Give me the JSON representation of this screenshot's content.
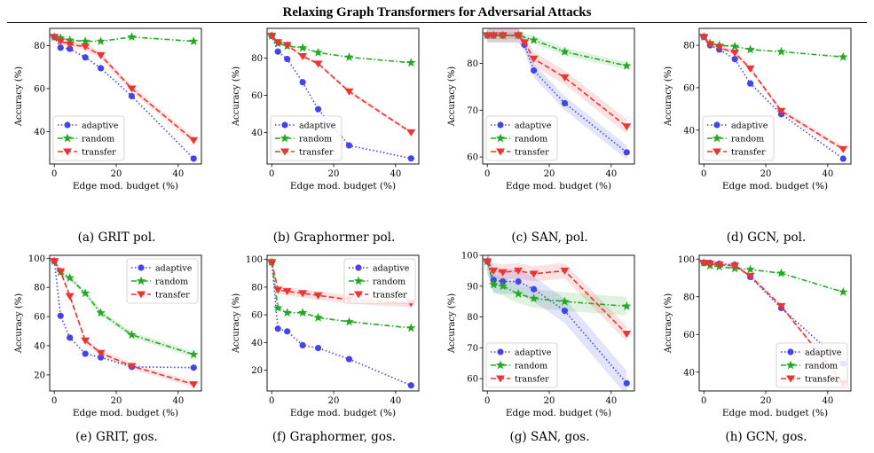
{
  "page_title": "Relaxing Graph Transformers for Adversarial Attacks",
  "series_styles": {
    "adaptive": {
      "color": "#4444ee",
      "marker": "circle",
      "dash": "dotted"
    },
    "random": {
      "color": "#22aa22",
      "marker": "star",
      "dash": "dash-dot"
    },
    "transfer": {
      "color": "#ee3333",
      "marker": "triangle-down",
      "dash": "dashed"
    }
  },
  "chart_data": [
    {
      "type": "line",
      "caption": "(a) GRIT pol.",
      "xlabel": "Edge mod. budget (%)",
      "ylabel": "Accuracy (%)",
      "xlim": [
        -1.5,
        47.5
      ],
      "ylim": [
        25,
        88
      ],
      "xticks": [
        0,
        20,
        40
      ],
      "yticks": [
        40,
        60,
        80
      ],
      "legend": "lower-left",
      "series": [
        {
          "name": "adaptive",
          "x": [
            0,
            2,
            5,
            10,
            15,
            25,
            45
          ],
          "y": [
            84,
            79,
            78.5,
            74.5,
            69.5,
            56.5,
            27.5
          ],
          "band": 0
        },
        {
          "name": "random",
          "x": [
            0,
            2,
            5,
            10,
            15,
            25,
            45
          ],
          "y": [
            84,
            83.5,
            82.5,
            82,
            82,
            84,
            82
          ],
          "band": 0
        },
        {
          "name": "transfer",
          "x": [
            0,
            2,
            5,
            10,
            15,
            25,
            45
          ],
          "y": [
            84,
            82,
            80.5,
            79.5,
            75.5,
            60,
            36
          ],
          "band": 1.5
        }
      ]
    },
    {
      "type": "line",
      "caption": "(b) Graphormer pol.",
      "xlabel": "Edge mod. budget (%)",
      "ylabel": "Accuracy (%)",
      "xlim": [
        -1.5,
        47.5
      ],
      "ylim": [
        23,
        96
      ],
      "xticks": [
        0,
        20,
        40
      ],
      "yticks": [
        40,
        60,
        80
      ],
      "legend": "lower-left",
      "series": [
        {
          "name": "adaptive",
          "x": [
            0,
            2,
            5,
            10,
            15,
            25,
            45
          ],
          "y": [
            92,
            83.5,
            79.5,
            67,
            52.5,
            33,
            26
          ],
          "band": 0
        },
        {
          "name": "random",
          "x": [
            0,
            2,
            5,
            10,
            15,
            25,
            45
          ],
          "y": [
            92,
            88,
            86.5,
            85.5,
            83,
            80.5,
            77.5
          ],
          "band": 0
        },
        {
          "name": "transfer",
          "x": [
            0,
            2,
            5,
            10,
            15,
            25,
            45
          ],
          "y": [
            92,
            88.5,
            87,
            81,
            77,
            62,
            40
          ],
          "band": 1
        }
      ]
    },
    {
      "type": "line",
      "caption": "(c) SAN, pol.",
      "xlabel": "Edge mod. budget (%)",
      "ylabel": "Accuracy (%)",
      "xlim": [
        -1.5,
        47.5
      ],
      "ylim": [
        58.5,
        87.5
      ],
      "xticks": [
        0,
        20,
        40
      ],
      "yticks": [
        60,
        70,
        80
      ],
      "legend": "lower-left",
      "series": [
        {
          "name": "adaptive",
          "x": [
            0,
            2,
            5,
            10,
            12,
            15,
            25,
            45
          ],
          "y": [
            86,
            86,
            86,
            86,
            84,
            78.5,
            71.5,
            61
          ],
          "band": 1.5
        },
        {
          "name": "random",
          "x": [
            0,
            2,
            5,
            10,
            15,
            25,
            45
          ],
          "y": [
            86,
            86,
            86,
            86,
            85,
            82.5,
            79.5
          ],
          "band": 0.8
        },
        {
          "name": "transfer",
          "x": [
            0,
            2,
            5,
            10,
            12,
            15,
            25,
            45
          ],
          "y": [
            86,
            86,
            86,
            86,
            84.5,
            81,
            77,
            66.5
          ],
          "band": 1.5
        }
      ]
    },
    {
      "type": "line",
      "caption": "(d) GCN, pol.",
      "xlabel": "Edge mod. budget (%)",
      "ylabel": "Accuracy (%)",
      "xlim": [
        -1.5,
        47.5
      ],
      "ylim": [
        24,
        88
      ],
      "xticks": [
        0,
        20,
        40
      ],
      "yticks": [
        40,
        60,
        80
      ],
      "legend": "lower-left",
      "series": [
        {
          "name": "adaptive",
          "x": [
            0,
            2,
            5,
            10,
            15,
            25,
            45
          ],
          "y": [
            84,
            80,
            78,
            73.5,
            62,
            47.5,
            26.5
          ],
          "band": 0
        },
        {
          "name": "random",
          "x": [
            0,
            2,
            5,
            10,
            15,
            25,
            45
          ],
          "y": [
            84,
            81,
            80,
            79.5,
            78,
            77,
            74.5
          ],
          "band": 0
        },
        {
          "name": "transfer",
          "x": [
            0,
            2,
            5,
            10,
            15,
            25,
            45
          ],
          "y": [
            84,
            80.5,
            79,
            76.5,
            69,
            49,
            31
          ],
          "band": 1.2
        }
      ]
    },
    {
      "type": "line",
      "caption": "(e) GRIT, gos.",
      "xlabel": "Edge mod. budget (%)",
      "ylabel": "Accuracy (%)",
      "xlim": [
        -1.5,
        47.5
      ],
      "ylim": [
        9,
        102
      ],
      "xticks": [
        0,
        20,
        40
      ],
      "yticks": [
        20,
        40,
        60,
        80,
        100
      ],
      "legend": "upper-right",
      "series": [
        {
          "name": "adaptive",
          "x": [
            0,
            2,
            5,
            10,
            15,
            25,
            45
          ],
          "y": [
            98,
            60.5,
            45.5,
            34.5,
            32,
            25.5,
            25
          ],
          "band": 0
        },
        {
          "name": "random",
          "x": [
            0,
            2,
            5,
            10,
            15,
            25,
            45
          ],
          "y": [
            98,
            90.5,
            86.5,
            76,
            62.5,
            47.5,
            34
          ],
          "band": 2
        },
        {
          "name": "transfer",
          "x": [
            0,
            2,
            5,
            10,
            15,
            25,
            45
          ],
          "y": [
            98,
            91,
            74,
            43.5,
            35,
            26,
            13.5
          ],
          "band": 2
        }
      ]
    },
    {
      "type": "line",
      "caption": "(f) Graphormer, gos.",
      "xlabel": "Edge mod. budget (%)",
      "ylabel": "Accuracy (%)",
      "xlim": [
        -1.5,
        47.5
      ],
      "ylim": [
        5,
        103
      ],
      "xticks": [
        0,
        20,
        40
      ],
      "yticks": [
        20,
        40,
        60,
        80,
        100
      ],
      "legend": "upper-right",
      "series": [
        {
          "name": "adaptive",
          "x": [
            0,
            2,
            5,
            10,
            15,
            25,
            45
          ],
          "y": [
            98,
            50,
            48,
            38,
            36,
            28,
            9
          ],
          "band": 0
        },
        {
          "name": "random",
          "x": [
            0,
            2,
            5,
            10,
            15,
            25,
            45
          ],
          "y": [
            98,
            65,
            61.5,
            61.5,
            58,
            55,
            50.5
          ],
          "band": 0
        },
        {
          "name": "transfer",
          "x": [
            0,
            2,
            5,
            10,
            15,
            25,
            45
          ],
          "y": [
            98,
            78,
            77,
            75.5,
            74,
            71,
            68.5
          ],
          "band": 3
        }
      ]
    },
    {
      "type": "line",
      "caption": "(g) SAN, gos.",
      "xlabel": "Edge mod. budget (%)",
      "ylabel": "Accuracy (%)",
      "xlim": [
        -1.5,
        47.5
      ],
      "ylim": [
        56,
        100
      ],
      "xticks": [
        0,
        20,
        40
      ],
      "yticks": [
        60,
        70,
        80,
        90,
        100
      ],
      "legend": "lower-left",
      "series": [
        {
          "name": "adaptive",
          "x": [
            0,
            2,
            5,
            10,
            15,
            25,
            45
          ],
          "y": [
            98,
            92,
            91.5,
            91.5,
            89,
            82,
            58.5
          ],
          "band": 4
        },
        {
          "name": "random",
          "x": [
            0,
            2,
            5,
            10,
            15,
            25,
            45
          ],
          "y": [
            98,
            90.5,
            90,
            87.5,
            86,
            85,
            83.5
          ],
          "band": 3
        },
        {
          "name": "transfer",
          "x": [
            0,
            2,
            5,
            10,
            15,
            25,
            45
          ],
          "y": [
            98,
            95,
            94.5,
            95,
            94,
            95,
            74.5
          ],
          "band": 2.5
        }
      ]
    },
    {
      "type": "line",
      "caption": "(h) GCN, gos.",
      "xlabel": "Edge mod. budget (%)",
      "ylabel": "Accuracy (%)",
      "xlim": [
        -1.5,
        47.5
      ],
      "ylim": [
        30,
        102
      ],
      "xticks": [
        0,
        20,
        40
      ],
      "yticks": [
        40,
        60,
        80,
        100
      ],
      "legend": "lower-right",
      "series": [
        {
          "name": "adaptive",
          "x": [
            0,
            2,
            5,
            10,
            15,
            25,
            45
          ],
          "y": [
            98,
            98,
            97.5,
            97,
            90.5,
            74,
            44.5
          ],
          "band": 0
        },
        {
          "name": "random",
          "x": [
            0,
            2,
            5,
            10,
            15,
            25,
            45
          ],
          "y": [
            98,
            96.5,
            96,
            95,
            94.5,
            92.5,
            82.5
          ],
          "band": 0
        },
        {
          "name": "transfer",
          "x": [
            0,
            2,
            5,
            10,
            15,
            25,
            45
          ],
          "y": [
            98,
            97.5,
            97,
            96.5,
            91,
            75,
            34
          ],
          "band": 1
        }
      ]
    }
  ]
}
